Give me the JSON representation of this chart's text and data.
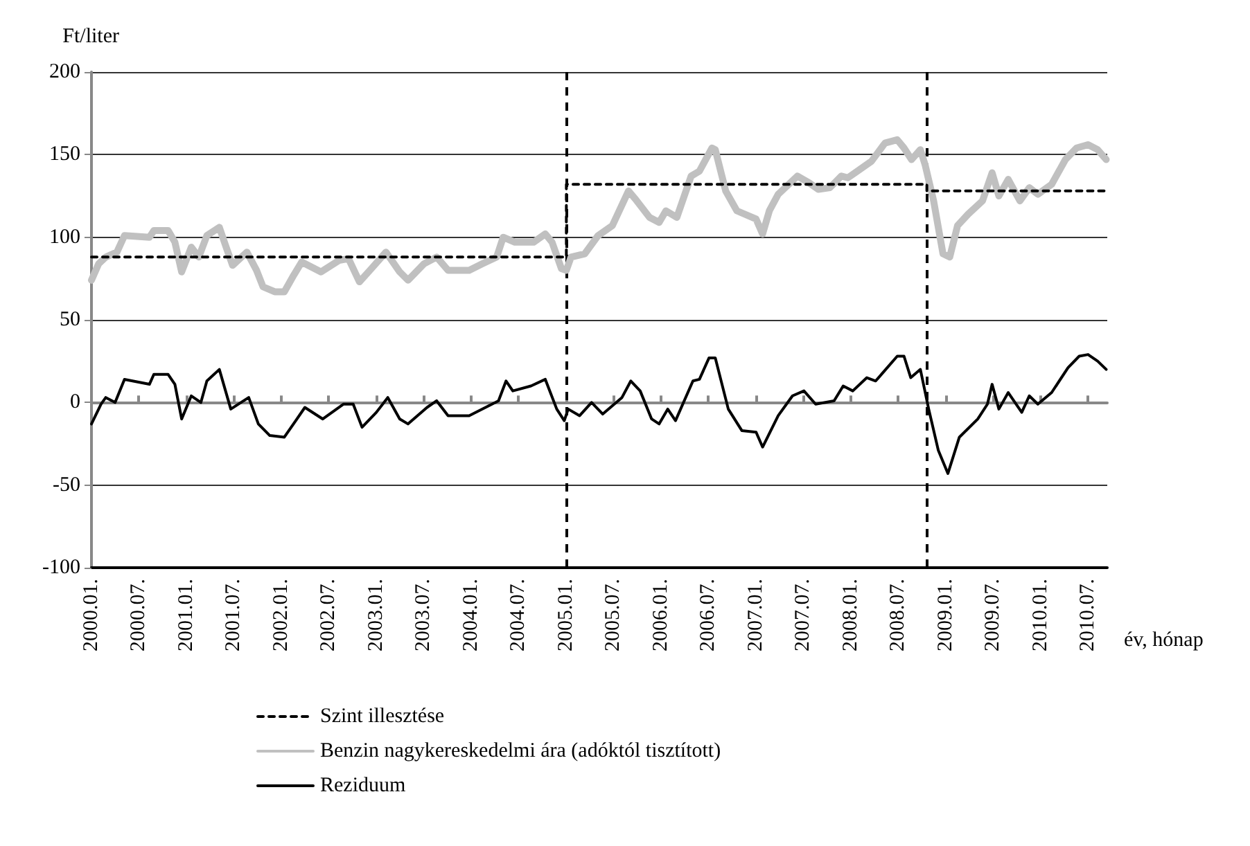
{
  "chart_data": {
    "type": "line",
    "ylabel": "Ft/liter",
    "xlabel": "év, hónap",
    "xlim": [
      "2000-01-01",
      "2010-09-13"
    ],
    "ylim": [
      -100,
      200
    ],
    "xticks": [
      {
        "value": "2000-01",
        "label": "2000.01."
      },
      {
        "value": "2000-07",
        "label": "2000.07."
      },
      {
        "value": "2001-01",
        "label": "2001.01."
      },
      {
        "value": "2001-07",
        "label": "2001.07."
      },
      {
        "value": "2002-01",
        "label": "2002.01."
      },
      {
        "value": "2002-07",
        "label": "2002.07."
      },
      {
        "value": "2003-01",
        "label": "2003.01."
      },
      {
        "value": "2003-07",
        "label": "2003.07."
      },
      {
        "value": "2004-01",
        "label": "2004.01."
      },
      {
        "value": "2004-07",
        "label": "2004.07."
      },
      {
        "value": "2005-01",
        "label": "2005.01."
      },
      {
        "value": "2005-07",
        "label": "2005.07."
      },
      {
        "value": "2006-01",
        "label": "2006.01."
      },
      {
        "value": "2006-07",
        "label": "2006.07."
      },
      {
        "value": "2007-01",
        "label": "2007.01."
      },
      {
        "value": "2007-07",
        "label": "2007.07."
      },
      {
        "value": "2008-01",
        "label": "2008.01."
      },
      {
        "value": "2008-07",
        "label": "2008.07."
      },
      {
        "value": "2009-01",
        "label": "2009.01."
      },
      {
        "value": "2009-07",
        "label": "2009.07."
      },
      {
        "value": "2010-01",
        "label": "2010.01."
      },
      {
        "value": "2010-07",
        "label": "2010.07."
      }
    ],
    "yticks": [
      -100,
      -50,
      0,
      50,
      100,
      150,
      200
    ],
    "grid": "y",
    "legend": "bottom",
    "marker": "none",
    "ref_lines": [
      {
        "axis": "x",
        "value": "2005-01-01",
        "color": "#000000",
        "line_style": "dashed"
      },
      {
        "axis": "x",
        "value": "2008-10-19",
        "color": "#000000",
        "line_style": "dashed"
      }
    ],
    "series": [
      {
        "name": "Szint illesztése",
        "color": "#000000",
        "line_style": "dashed",
        "x": [
          "2000-01-01",
          "2005-01-01",
          "2005-01-01",
          "2008-10-19",
          "2008-10-19",
          "2010-09-13"
        ],
        "values": [
          88,
          88,
          132,
          132,
          128,
          128
        ]
      },
      {
        "name": "Benzin nagykereskedelmi ára (adóktól tisztított)",
        "color": "#c0c0c0",
        "line_style": "solid",
        "x": [
          "2000-01-01",
          "2000-01-29",
          "2000-02-25",
          "2000-04-08",
          "2000-05-07",
          "2000-08-11",
          "2000-08-28",
          "2000-10-22",
          "2000-11-17",
          "2000-12-13",
          "2001-01-19",
          "2001-02-17",
          "2001-03-20",
          "2001-05-07",
          "2001-06-02",
          "2001-06-27",
          "2001-08-21",
          "2001-09-27",
          "2001-10-22",
          "2001-12-06",
          "2002-01-12",
          "2002-02-17",
          "2002-03-20",
          "2002-06-02",
          "2002-08-11",
          "2002-09-16",
          "2002-10-28",
          "2002-12-13",
          "2003-02-07",
          "2003-04-01",
          "2003-05-03",
          "2003-07-04",
          "2003-08-21",
          "2003-10-04",
          "2003-12-24",
          "2004-02-14",
          "2004-04-08",
          "2004-05-03",
          "2004-06-17",
          "2004-08-28",
          "2004-10-12",
          "2004-11-07",
          "2004-12-13",
          "2005-01-01",
          "2005-01-19",
          "2005-03-13",
          "2005-05-03",
          "2005-06-27",
          "2005-08-28",
          "2005-09-24",
          "2005-11-17",
          "2005-12-24",
          "2006-01-19",
          "2006-03-02",
          "2006-04-26",
          "2006-05-28",
          "2006-07-15",
          "2006-07-28",
          "2006-09-06",
          "2006-10-19",
          "2007-01-01",
          "2007-01-26",
          "2007-02-21",
          "2007-03-27",
          "2007-06-09",
          "2007-07-23",
          "2007-08-28",
          "2007-10-12",
          "2007-11-25",
          "2007-12-20",
          "2008-01-26",
          "2008-03-20",
          "2008-05-11",
          "2008-06-27",
          "2008-07-23",
          "2008-08-21",
          "2008-09-24",
          "2008-10-12",
          "2008-11-14",
          "2008-12-20",
          "2009-01-15",
          "2009-02-14",
          "2009-03-27",
          "2009-05-21",
          "2009-06-27",
          "2009-07-23",
          "2009-08-28",
          "2009-10-12",
          "2009-11-17",
          "2009-12-20",
          "2010-02-11",
          "2010-04-05",
          "2010-05-18",
          "2010-07-01",
          "2010-08-07",
          "2010-09-09"
        ],
        "values": [
          74,
          84,
          88,
          91,
          101,
          100,
          104,
          104,
          97,
          79,
          94,
          88,
          101,
          106,
          94,
          83,
          91,
          80,
          70,
          67,
          67,
          77,
          85,
          79,
          86,
          87,
          73,
          81,
          91,
          79,
          74,
          84,
          88,
          80,
          80,
          84,
          88,
          100,
          97,
          97,
          102,
          97,
          81,
          80,
          88,
          90,
          101,
          107,
          128,
          123,
          112,
          109,
          116,
          112,
          137,
          140,
          154,
          153,
          128,
          116,
          111,
          102,
          116,
          126,
          137,
          133,
          129,
          130,
          137,
          136,
          140,
          146,
          157,
          159,
          154,
          147,
          153,
          144,
          122,
          90,
          88,
          107,
          114,
          122,
          139,
          125,
          135,
          122,
          130,
          126,
          132,
          147,
          154,
          156,
          153,
          147
        ]
      },
      {
        "name": "Reziduum",
        "color": "#000000",
        "line_style": "solid",
        "x": [
          "2000-01-01",
          "2000-02-07",
          "2000-02-25",
          "2000-04-01",
          "2000-05-07",
          "2000-08-11",
          "2000-08-28",
          "2000-10-22",
          "2000-11-17",
          "2000-12-13",
          "2001-01-19",
          "2001-02-25",
          "2001-03-20",
          "2001-05-07",
          "2001-06-20",
          "2001-08-28",
          "2001-10-04",
          "2001-11-17",
          "2002-01-12",
          "2002-02-25",
          "2002-04-01",
          "2002-06-09",
          "2002-08-28",
          "2002-10-04",
          "2002-11-07",
          "2003-01-01",
          "2003-02-14",
          "2003-04-01",
          "2003-05-03",
          "2003-07-15",
          "2003-08-21",
          "2003-10-04",
          "2003-12-24",
          "2004-02-25",
          "2004-04-15",
          "2004-05-14",
          "2004-06-09",
          "2004-08-18",
          "2004-10-12",
          "2004-11-25",
          "2004-12-24",
          "2005-01-08",
          "2005-02-21",
          "2005-04-08",
          "2005-05-21",
          "2005-08-03",
          "2005-09-06",
          "2005-10-12",
          "2005-11-25",
          "2005-12-24",
          "2006-01-26",
          "2006-02-25",
          "2006-05-03",
          "2006-05-28",
          "2006-07-04",
          "2006-07-28",
          "2006-09-16",
          "2006-11-07",
          "2007-01-01",
          "2007-01-26",
          "2007-03-27",
          "2007-05-21",
          "2007-07-04",
          "2007-08-18",
          "2007-10-28",
          "2007-12-02",
          "2008-01-08",
          "2008-03-02",
          "2008-04-05",
          "2008-06-27",
          "2008-07-23",
          "2008-08-18",
          "2008-09-24",
          "2008-10-26",
          "2008-12-02",
          "2009-01-08",
          "2009-02-21",
          "2009-05-03",
          "2009-06-09",
          "2009-06-27",
          "2009-07-23",
          "2009-08-28",
          "2009-10-19",
          "2009-11-17",
          "2009-12-20",
          "2010-02-11",
          "2010-04-15",
          "2010-05-28",
          "2010-07-01",
          "2010-08-07",
          "2010-09-09"
        ],
        "values": [
          -13,
          -1,
          3,
          0,
          14,
          11,
          17,
          17,
          11,
          -10,
          4,
          0,
          13,
          20,
          -4,
          3,
          -13,
          -20,
          -21,
          -11,
          -3,
          -10,
          -1,
          -1,
          -15,
          -6,
          3,
          -10,
          -13,
          -3,
          1,
          -8,
          -8,
          -3,
          1,
          13,
          7,
          10,
          14,
          -4,
          -11,
          -4,
          -8,
          0,
          -7,
          3,
          13,
          7,
          -10,
          -13,
          -4,
          -11,
          13,
          14,
          27,
          27,
          -4,
          -17,
          -18,
          -27,
          -8,
          4,
          7,
          -1,
          1,
          10,
          7,
          15,
          13,
          28,
          28,
          15,
          20,
          -4,
          -29,
          -43,
          -21,
          -10,
          -1,
          11,
          -4,
          6,
          -6,
          4,
          -1,
          6,
          21,
          28,
          29,
          25,
          20
        ]
      }
    ]
  }
}
